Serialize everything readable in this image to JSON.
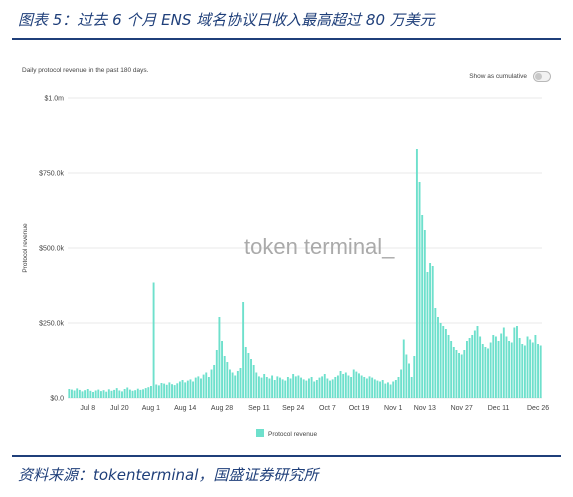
{
  "figure": {
    "title": "图表 5：过去 6 个月 ENS 域名协议日收入最高超过 80 万美元",
    "source": "资料来源：tokenterminal，国盛证券研究所"
  },
  "panel": {
    "subtitle": "Daily protocol revenue in the past 180 days.",
    "toggle_label": "Show as cumulative",
    "toggle_on": false,
    "watermark": "token terminal_"
  },
  "colors": {
    "bar": "#6ee0cc",
    "grid": "#e8e8e8",
    "accent": "#1f3f7a"
  },
  "chart_data": {
    "type": "bar",
    "ylabel": "Protocol revenue",
    "xlabel": "",
    "ylim": [
      0,
      1000000
    ],
    "yticks": [
      {
        "value": 0,
        "label": "$0.0"
      },
      {
        "value": 250000,
        "label": "$250.0k"
      },
      {
        "value": 500000,
        "label": "$500.0k"
      },
      {
        "value": 750000,
        "label": "$750.0k"
      },
      {
        "value": 1000000,
        "label": "$1.0m"
      }
    ],
    "xticks": [
      {
        "index": 7,
        "label": "Jul 8"
      },
      {
        "index": 19,
        "label": "Jul 20"
      },
      {
        "index": 31,
        "label": "Aug 1"
      },
      {
        "index": 44,
        "label": "Aug 14"
      },
      {
        "index": 58,
        "label": "Aug 28"
      },
      {
        "index": 72,
        "label": "Sep 11"
      },
      {
        "index": 85,
        "label": "Sep 24"
      },
      {
        "index": 98,
        "label": "Oct 7"
      },
      {
        "index": 110,
        "label": "Oct 19"
      },
      {
        "index": 123,
        "label": "Nov 1"
      },
      {
        "index": 135,
        "label": "Nov 13"
      },
      {
        "index": 149,
        "label": "Nov 27"
      },
      {
        "index": 163,
        "label": "Dec 11"
      },
      {
        "index": 178,
        "label": "Dec 26"
      }
    ],
    "legend": [
      "Protocol revenue"
    ],
    "series": [
      {
        "name": "Protocol revenue",
        "values": [
          30000,
          28000,
          25000,
          32000,
          27000,
          22000,
          26000,
          30000,
          24000,
          20000,
          25000,
          28000,
          23000,
          26000,
          21000,
          29000,
          24000,
          27000,
          33000,
          25000,
          22000,
          30000,
          35000,
          28000,
          24000,
          26000,
          31000,
          27000,
          29000,
          33000,
          36000,
          40000,
          385000,
          45000,
          42000,
          50000,
          48000,
          44000,
          52000,
          46000,
          43000,
          49000,
          55000,
          60000,
          52000,
          58000,
          62000,
          55000,
          68000,
          72000,
          65000,
          78000,
          85000,
          70000,
          95000,
          110000,
          160000,
          270000,
          190000,
          140000,
          120000,
          95000,
          85000,
          75000,
          90000,
          100000,
          320000,
          170000,
          150000,
          130000,
          110000,
          85000,
          72000,
          68000,
          80000,
          70000,
          65000,
          75000,
          60000,
          72000,
          68000,
          62000,
          58000,
          70000,
          65000,
          80000,
          72000,
          75000,
          68000,
          62000,
          58000,
          65000,
          70000,
          55000,
          60000,
          68000,
          72000,
          80000,
          65000,
          58000,
          62000,
          70000,
          75000,
          90000,
          80000,
          85000,
          75000,
          70000,
          95000,
          88000,
          82000,
          75000,
          70000,
          65000,
          72000,
          68000,
          62000,
          58000,
          55000,
          60000,
          48000,
          52000,
          45000,
          55000,
          60000,
          70000,
          95000,
          195000,
          145000,
          115000,
          70000,
          140000,
          830000,
          720000,
          610000,
          560000,
          420000,
          450000,
          440000,
          300000,
          270000,
          250000,
          240000,
          230000,
          210000,
          190000,
          170000,
          160000,
          150000,
          145000,
          160000,
          190000,
          200000,
          210000,
          225000,
          240000,
          205000,
          180000,
          170000,
          165000,
          185000,
          210000,
          205000,
          190000,
          215000,
          235000,
          205000,
          190000,
          185000,
          235000,
          240000,
          200000,
          180000,
          175000,
          205000,
          195000,
          185000,
          210000,
          180000,
          175000
        ]
      }
    ]
  }
}
